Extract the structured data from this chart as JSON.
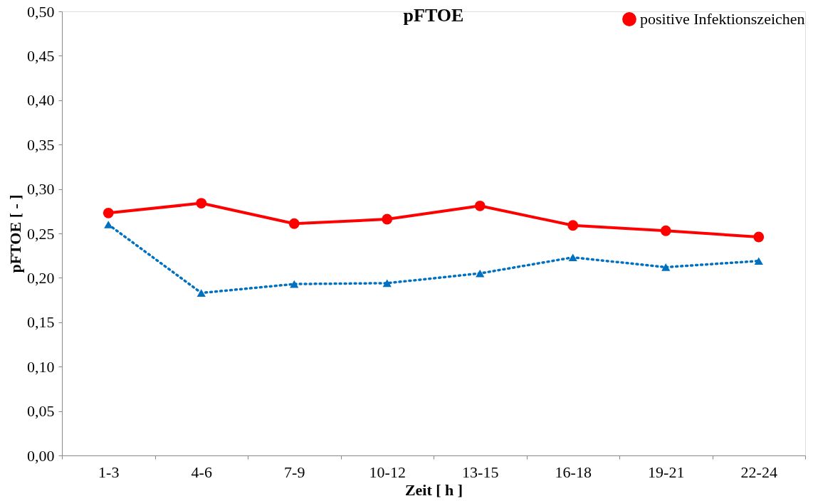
{
  "chart_data": {
    "type": "line",
    "title": "pFTOE",
    "xlabel": "Zeit [ h ]",
    "ylabel": "pFTOE [ - ]",
    "categories": [
      "1-3",
      "4-6",
      "7-9",
      "10-12",
      "13-15",
      "16-18",
      "19-21",
      "22-24"
    ],
    "series": [
      {
        "name": "positive Infektionszeichen",
        "color": "#ff0000",
        "marker": "circle",
        "line_style": "solid",
        "values": [
          0.273,
          0.284,
          0.261,
          0.266,
          0.281,
          0.259,
          0.253,
          0.246
        ]
      },
      {
        "color": "#0070c0",
        "marker": "triangle",
        "line_style": "dotted",
        "values": [
          0.26,
          0.183,
          0.193,
          0.194,
          0.205,
          0.223,
          0.212,
          0.219
        ]
      }
    ],
    "ylim": [
      0,
      0.5
    ],
    "yticks": [
      {
        "value": 0,
        "label": "0,00"
      },
      {
        "value": 0.05,
        "label": "0,05"
      },
      {
        "value": 0.1,
        "label": "0,10"
      },
      {
        "value": 0.15,
        "label": "0,15"
      },
      {
        "value": 0.2,
        "label": "0,20"
      },
      {
        "value": 0.25,
        "label": "0,25"
      },
      {
        "value": 0.3,
        "label": "0,30"
      },
      {
        "value": 0.35,
        "label": "0,35"
      },
      {
        "value": 0.4,
        "label": "0,40"
      },
      {
        "value": 0.45,
        "label": "0,45"
      },
      {
        "value": 0.5,
        "label": "0,50"
      }
    ],
    "grid": false,
    "legend": "top right"
  }
}
